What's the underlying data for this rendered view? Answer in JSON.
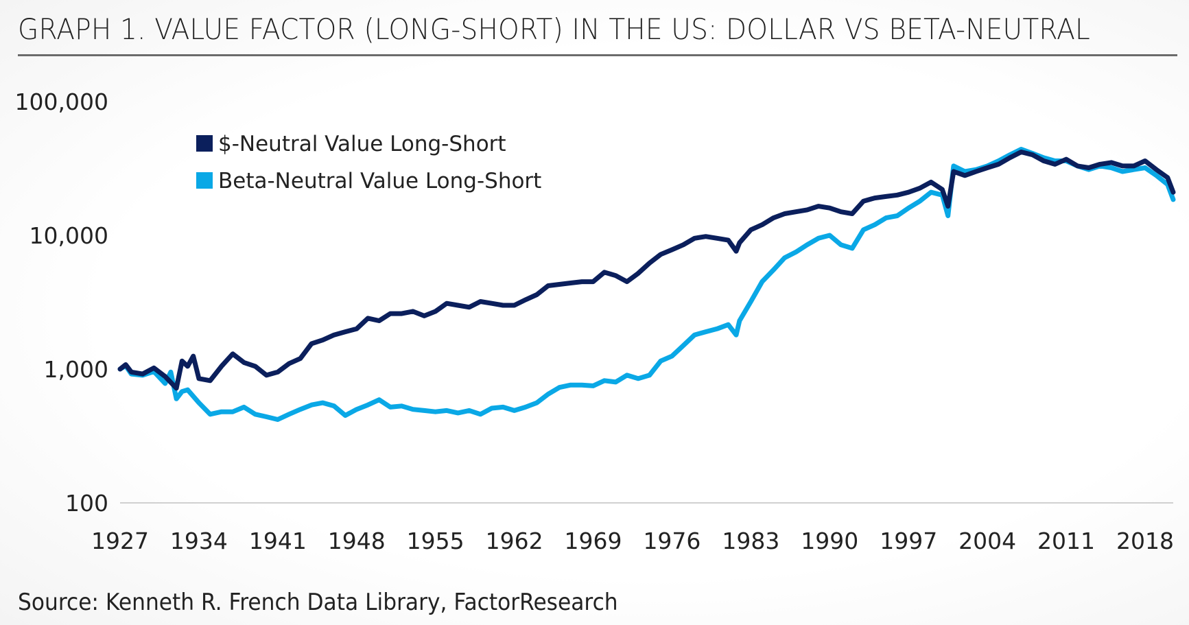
{
  "title": "GRAPH 1. VALUE FACTOR (LONG-SHORT) IN THE US: DOLLAR VS BETA-NEUTRAL",
  "source": "Source: Kenneth R. French Data Library, FactorResearch",
  "colors": {
    "dollar_neutral": "#0b1f5c",
    "beta_neutral": "#0aa8e6",
    "gridline": "#d0d0d0",
    "title_rule": "#6b6b6b"
  },
  "chart_data": {
    "type": "line",
    "title": "GRAPH 1. VALUE FACTOR (LONG-SHORT) IN THE US: DOLLAR VS BETA-NEUTRAL",
    "xlabel": "",
    "ylabel": "",
    "yscale": "log",
    "ylim": [
      100,
      100000
    ],
    "xlim": [
      1927,
      2020.5
    ],
    "y_ticks": [
      100,
      1000,
      10000,
      100000
    ],
    "y_tick_labels": [
      "100",
      "1,000",
      "10,000",
      "100,000"
    ],
    "x_ticks": [
      1927,
      1934,
      1941,
      1948,
      1955,
      1962,
      1969,
      1976,
      1983,
      1990,
      1997,
      2004,
      2011,
      2018
    ],
    "x_tick_labels": [
      "1927",
      "1934",
      "1941",
      "1948",
      "1955",
      "1962",
      "1969",
      "1976",
      "1983",
      "1990",
      "1997",
      "2004",
      "2011",
      "2018"
    ],
    "grid": false,
    "legend_position": "top-left",
    "series": [
      {
        "name": "$-Neutral Value Long-Short",
        "color": "#0b1f5c",
        "x": [
          1927,
          1927.5,
          1928,
          1929,
          1930,
          1931,
          1932,
          1932.5,
          1933,
          1933.5,
          1934,
          1935,
          1936,
          1937,
          1938,
          1939,
          1940,
          1941,
          1942,
          1943,
          1944,
          1945,
          1946,
          1947,
          1948,
          1949,
          1950,
          1951,
          1952,
          1953,
          1954,
          1955,
          1956,
          1957,
          1958,
          1959,
          1960,
          1961,
          1962,
          1963,
          1964,
          1965,
          1966,
          1967,
          1968,
          1969,
          1970,
          1971,
          1972,
          1973,
          1974,
          1975,
          1976,
          1977,
          1978,
          1979,
          1980,
          1981,
          1981.7,
          1982,
          1983,
          1984,
          1985,
          1986,
          1987,
          1988,
          1989,
          1990,
          1991,
          1992,
          1993,
          1994,
          1995,
          1996,
          1997,
          1998,
          1999,
          2000,
          2000.5,
          2001,
          2002,
          2003,
          2004,
          2005,
          2006,
          2007,
          2008,
          2009,
          2010,
          2011,
          2012,
          2013,
          2014,
          2015,
          2016,
          2017,
          2018,
          2019,
          2020,
          2020.5
        ],
        "values": [
          1000,
          1080,
          950,
          920,
          1020,
          880,
          720,
          1150,
          1050,
          1250,
          850,
          820,
          1050,
          1300,
          1120,
          1050,
          900,
          950,
          1100,
          1200,
          1550,
          1650,
          1800,
          1900,
          2000,
          2400,
          2300,
          2600,
          2600,
          2700,
          2500,
          2700,
          3100,
          3000,
          2900,
          3200,
          3100,
          3000,
          3000,
          3300,
          3600,
          4200,
          4300,
          4400,
          4500,
          4500,
          5300,
          5000,
          4500,
          5200,
          6200,
          7200,
          7800,
          8500,
          9500,
          9800,
          9500,
          9200,
          7600,
          8800,
          11000,
          12000,
          13500,
          14500,
          15000,
          15500,
          16500,
          16000,
          15000,
          14500,
          18000,
          19000,
          19500,
          20000,
          21000,
          22500,
          25000,
          22000,
          16500,
          30000,
          28000,
          30000,
          32000,
          34000,
          38000,
          42000,
          40000,
          36000,
          34000,
          37000,
          33000,
          32000,
          34000,
          35000,
          33000,
          33000,
          36000,
          31000,
          27000,
          21000
        ]
      },
      {
        "name": "Beta-Neutral Value Long-Short",
        "color": "#0aa8e6",
        "x": [
          1927,
          1927.5,
          1928,
          1929,
          1930,
          1931,
          1931.5,
          1932,
          1932.5,
          1933,
          1934,
          1935,
          1936,
          1937,
          1938,
          1939,
          1940,
          1941,
          1942,
          1943,
          1944,
          1945,
          1946,
          1947,
          1948,
          1949,
          1950,
          1951,
          1952,
          1953,
          1954,
          1955,
          1956,
          1957,
          1958,
          1959,
          1960,
          1961,
          1962,
          1963,
          1964,
          1965,
          1966,
          1967,
          1968,
          1969,
          1970,
          1971,
          1972,
          1973,
          1974,
          1975,
          1976,
          1977,
          1978,
          1979,
          1980,
          1981,
          1981.7,
          1982,
          1983,
          1984,
          1985,
          1986,
          1987,
          1988,
          1989,
          1990,
          1991,
          1992,
          1993,
          1994,
          1995,
          1996,
          1997,
          1998,
          1999,
          2000,
          2000.5,
          2001,
          2002,
          2003,
          2004,
          2005,
          2006,
          2007,
          2008,
          2009,
          2010,
          2011,
          2012,
          2013,
          2014,
          2015,
          2016,
          2017,
          2018,
          2019,
          2020,
          2020.5
        ],
        "values": [
          1000,
          1060,
          920,
          900,
          960,
          780,
          950,
          600,
          680,
          700,
          560,
          460,
          480,
          480,
          520,
          460,
          440,
          420,
          460,
          500,
          540,
          560,
          530,
          450,
          500,
          540,
          590,
          520,
          530,
          500,
          490,
          480,
          490,
          470,
          490,
          460,
          510,
          520,
          490,
          520,
          560,
          650,
          730,
          760,
          760,
          750,
          820,
          800,
          900,
          850,
          900,
          1150,
          1250,
          1500,
          1800,
          1900,
          2000,
          2150,
          1800,
          2300,
          3200,
          4500,
          5500,
          6800,
          7500,
          8500,
          9500,
          10000,
          8500,
          8000,
          11000,
          12000,
          13500,
          14000,
          16000,
          18000,
          21000,
          20000,
          14000,
          33000,
          30000,
          31000,
          33000,
          36000,
          40000,
          44000,
          41000,
          38000,
          36000,
          36000,
          33000,
          31000,
          33000,
          32000,
          30000,
          31000,
          32000,
          28000,
          24000,
          18500
        ]
      }
    ]
  }
}
